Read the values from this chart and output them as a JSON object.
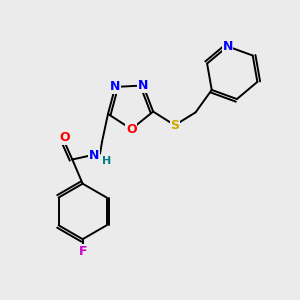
{
  "background_color": "#ebebeb",
  "bond_color": "#000000",
  "atom_colors": {
    "N": "#0000ff",
    "O": "#ff0000",
    "F": "#cc00cc",
    "S": "#ccaa00",
    "H": "#008080",
    "C": "#000000"
  },
  "figsize": [
    3.0,
    3.0
  ],
  "dpi": 100
}
